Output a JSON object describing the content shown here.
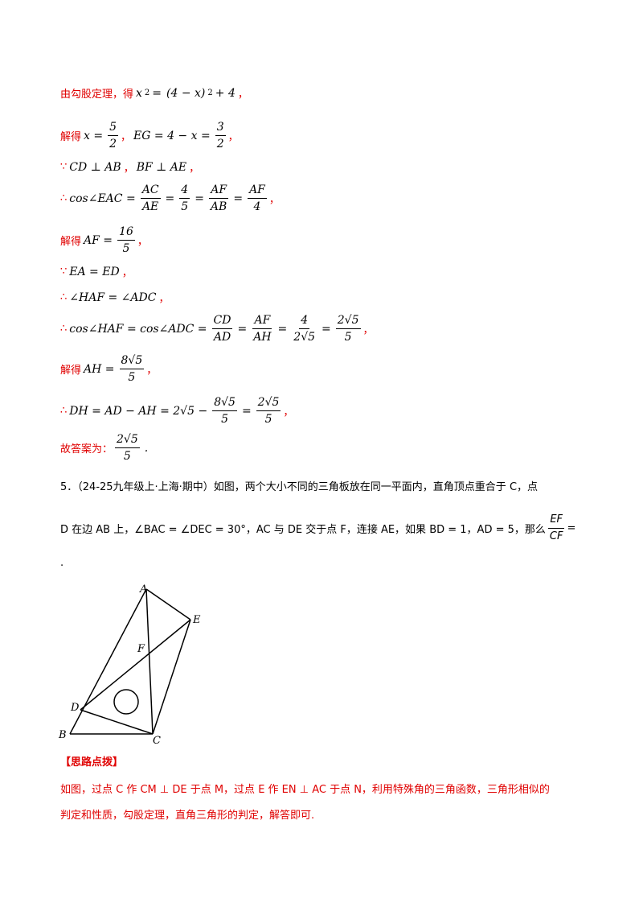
{
  "solution": [
    [
      "由勾股定理，得",
      "x",
      "2",
      "=",
      "(4 − x)",
      "2",
      "+ 4",
      "，"
    ],
    [
      "解得",
      "x =",
      "5",
      "2",
      "，",
      "EG = 4 − x =",
      "3",
      "2",
      "，"
    ],
    [
      "∵",
      "CD ⊥ AB",
      "，",
      "BF ⊥ AE",
      "，"
    ],
    [
      "∴",
      "cos∠EAC =",
      "AC",
      "AE",
      "=",
      "4",
      "5",
      "=",
      "AF",
      "AB",
      "=",
      "AF",
      "4",
      "，"
    ],
    [
      "解得",
      "AF =",
      "16",
      "5",
      "，"
    ],
    [
      "∵",
      "EA = ED",
      "，"
    ],
    [
      "∴",
      "∠HAF = ∠ADC",
      "，"
    ],
    [
      "∴",
      "cos∠HAF = cos∠ADC =",
      "CD",
      "AD",
      "=",
      "AF",
      "AH",
      "=",
      "4",
      "2√5",
      "=",
      "2√5",
      "5",
      "，"
    ],
    [
      "解得",
      "AH =",
      "8√5",
      "5",
      "，"
    ],
    [
      "∴",
      "DH = AD − AH = 2√5 −",
      "8√5",
      "5",
      "=",
      "2√5",
      "5",
      "，"
    ],
    [
      "故答案为：",
      "2√5",
      "5",
      "."
    ]
  ],
  "problem": [
    "5．（24-25九年级上·上海·期中）如图，两个大小不同的三角板放在同一平面内，直角顶点重合于 C，点",
    "D 在边 AB 上，∠BAC = ∠DEC = 30°，AC 与 DE 交于点 F，连接 AE，如果 BD = 1，AD = 5，那么",
    "EF",
    "CF",
    "=",
    "."
  ],
  "figure": {
    "labels": [
      "A",
      "E",
      "F",
      "D",
      "B",
      "C"
    ]
  },
  "hint": {
    "title": "【思路点拨】",
    "lines": [
      "如图，过点 C 作 CM ⊥ DE 于点 M，过点 E 作 EN ⊥ AC 于点 N，利用特殊角的三角函数，三角形相似的",
      "判定和性质，勾股定理，直角三角形的判定，解答即可."
    ]
  }
}
